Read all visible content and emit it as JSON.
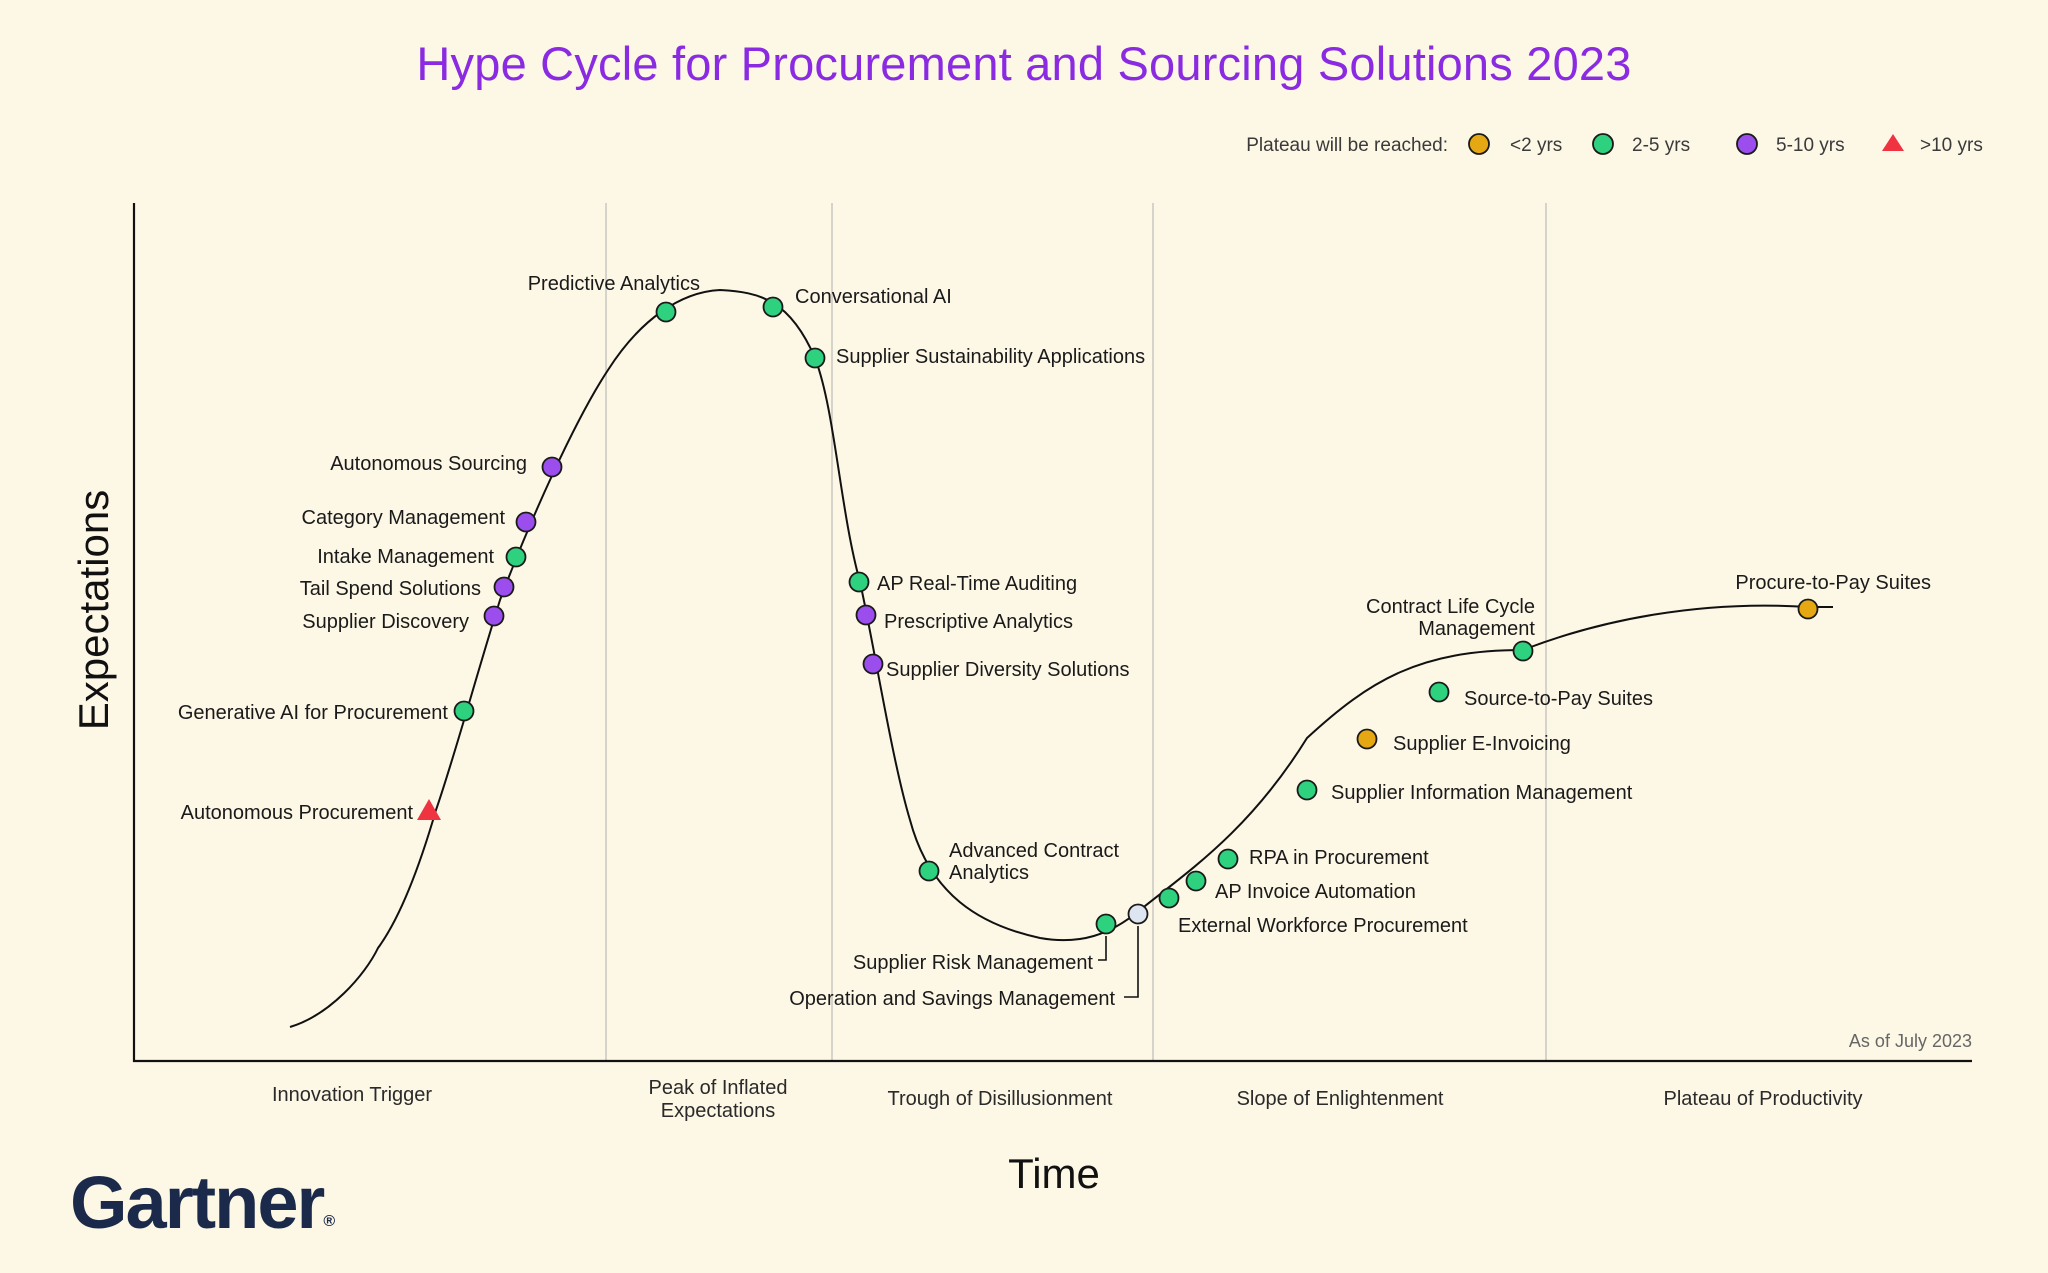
{
  "title": "Hype Cycle for Procurement and Sourcing Solutions 2023",
  "logo": "Gartner",
  "logo_mark": "®",
  "as_of": "As of July 2023",
  "legend": {
    "prefix": "Plateau will be reached:",
    "items": [
      {
        "key": "lt2",
        "label": "<2 yrs",
        "shape": "circle",
        "color": "#e5a812"
      },
      {
        "key": "2to5",
        "label": "2-5 yrs",
        "shape": "circle",
        "color": "#2ed17e"
      },
      {
        "key": "5to10",
        "label": "5-10 yrs",
        "shape": "circle",
        "color": "#9b4dee"
      },
      {
        "key": "gt10",
        "label": ">10 yrs",
        "shape": "triangle",
        "color": "#ef3340"
      }
    ]
  },
  "chart_data": {
    "type": "scatter",
    "title": "Hype Cycle for Procurement and Sourcing Solutions 2023",
    "xlabel": "Time",
    "ylabel": "Expectations",
    "phases": [
      "Innovation Trigger",
      "Peak of Inflated Expectations",
      "Trough of Disillusionment",
      "Slope of Enlightenment",
      "Plateau of Productivity"
    ],
    "colors": {
      "lt2": "#e5a812",
      "2to5": "#2ed17e",
      "5to10": "#9b4dee",
      "gt10": "#ef3340",
      "obsolete": "#dde6f0"
    },
    "points": [
      {
        "label": "Autonomous Procurement",
        "category": "gt10"
      },
      {
        "label": "Generative AI for Procurement",
        "category": "2to5"
      },
      {
        "label": "Supplier Discovery",
        "category": "5to10"
      },
      {
        "label": "Tail Spend Solutions",
        "category": "5to10"
      },
      {
        "label": "Intake Management",
        "category": "2to5"
      },
      {
        "label": "Category Management",
        "category": "5to10"
      },
      {
        "label": "Autonomous Sourcing",
        "category": "5to10"
      },
      {
        "label": "Predictive Analytics",
        "category": "2to5"
      },
      {
        "label": "Conversational AI",
        "category": "2to5"
      },
      {
        "label": "Supplier Sustainability Applications",
        "category": "2to5"
      },
      {
        "label": "AP Real-Time Auditing",
        "category": "2to5"
      },
      {
        "label": "Prescriptive Analytics",
        "category": "5to10"
      },
      {
        "label": "Supplier Diversity Solutions",
        "category": "5to10"
      },
      {
        "label": "Advanced Contract Analytics",
        "category": "2to5"
      },
      {
        "label": "Supplier Risk Management",
        "category": "2to5"
      },
      {
        "label": "Operation and Savings Management",
        "category": "obsolete"
      },
      {
        "label": "External Workforce Procurement",
        "category": "2to5"
      },
      {
        "label": "AP Invoice Automation",
        "category": "2to5"
      },
      {
        "label": "RPA in Procurement",
        "category": "2to5"
      },
      {
        "label": "Supplier Information Management",
        "category": "2to5"
      },
      {
        "label": "Supplier E-Invoicing",
        "category": "lt2"
      },
      {
        "label": "Source-to-Pay Suites",
        "category": "2to5"
      },
      {
        "label": "Contract Life Cycle Management",
        "category": "2to5"
      },
      {
        "label": "Procure-to-Pay Suites",
        "category": "lt2"
      }
    ]
  }
}
